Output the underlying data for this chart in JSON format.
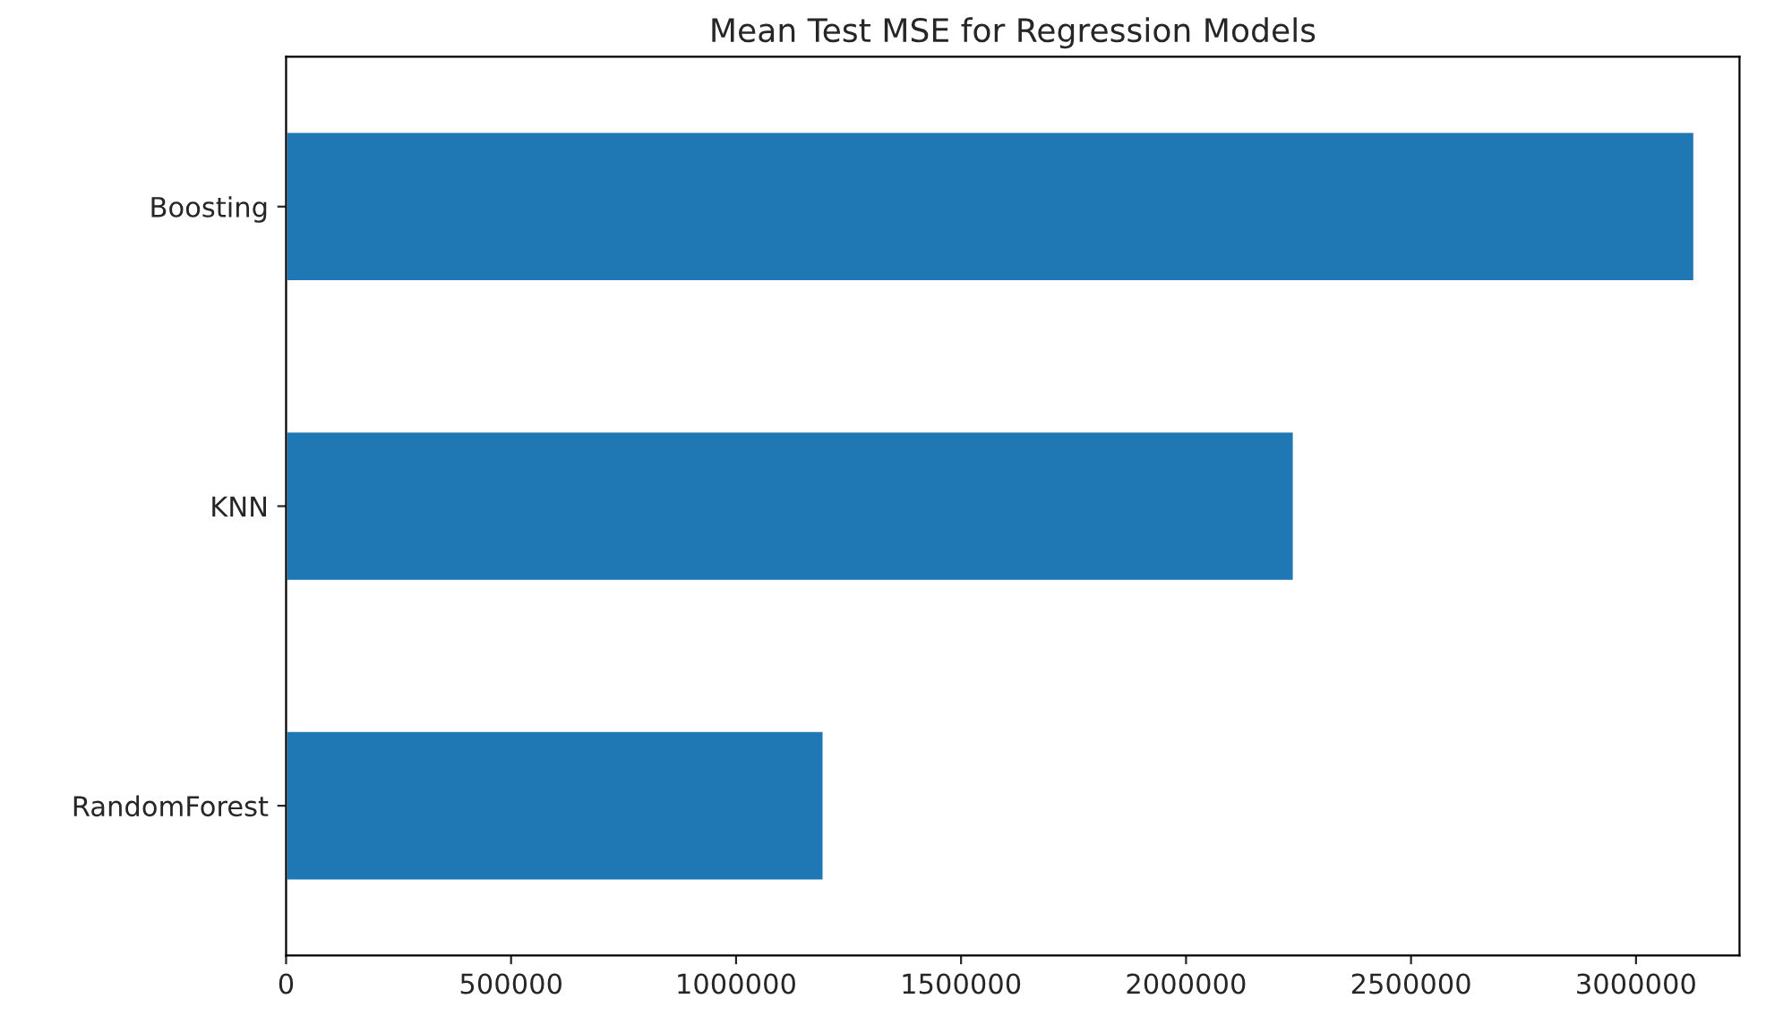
{
  "chart_data": {
    "type": "bar",
    "orientation": "horizontal",
    "title": "Mean Test MSE for Regression Models",
    "categories": [
      "Boosting",
      "KNN",
      "RandomForest"
    ],
    "values": [
      3130000,
      2240000,
      1195000
    ],
    "color": "#1f77b4",
    "xlim": [
      0,
      3230000
    ],
    "xticks": [
      0,
      500000,
      1000000,
      1500000,
      2000000,
      2500000,
      3000000
    ],
    "grid": false,
    "legend": false
  }
}
